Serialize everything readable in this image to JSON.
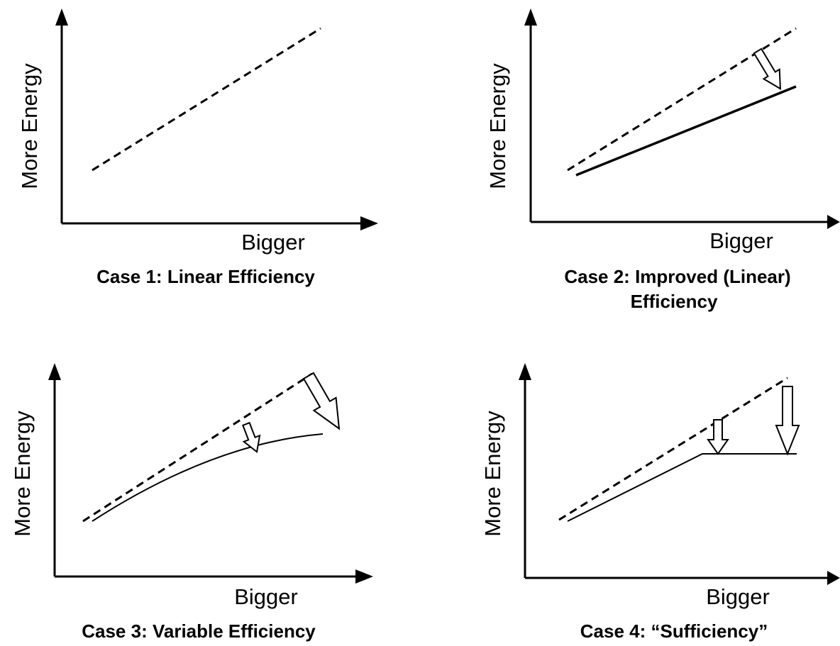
{
  "panels": [
    {
      "y_label": "More Energy",
      "x_label": "Bigger",
      "caption": [
        "Case 1: Linear Efficiency"
      ]
    },
    {
      "y_label": "More Energy",
      "x_label": "Bigger",
      "caption": [
        "Case 2: Improved (Linear)",
        "Efficiency"
      ]
    },
    {
      "y_label": "More Energy",
      "x_label": "Bigger",
      "caption": [
        "Case 3: Variable Efficiency"
      ]
    },
    {
      "y_label": "More Energy",
      "x_label": "Bigger",
      "caption": [
        "Case 4: “Sufficiency”"
      ]
    }
  ]
}
